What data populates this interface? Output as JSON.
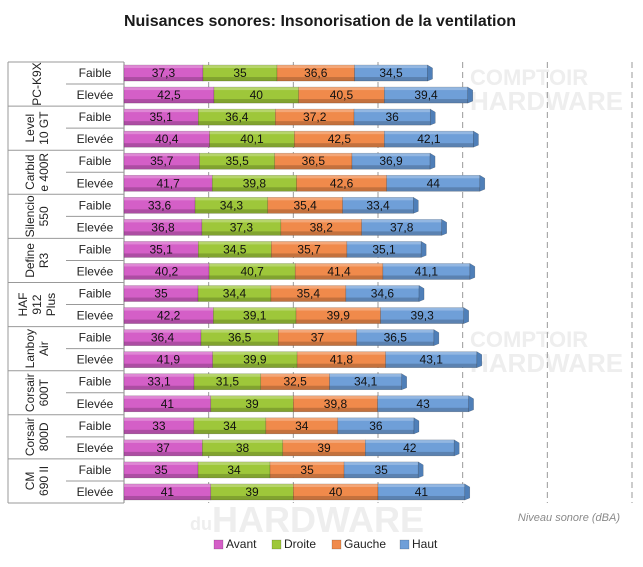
{
  "chart_data": {
    "type": "bar",
    "orientation": "horizontal",
    "stacked": true,
    "title": "Nuisances sonores: Insonorisation de la ventilation",
    "xlabel": "Niveau sonore (dBA)",
    "levels": [
      "Faible",
      "Elevée"
    ],
    "series_names": [
      "Avant",
      "Droite",
      "Gauche",
      "Haut"
    ],
    "colors": [
      "#d45fc7",
      "#9ec73a",
      "#f08a4b",
      "#6f9fd8"
    ],
    "groups": [
      {
        "name": [
          "PC-K9X"
        ],
        "rows": [
          [
            37.3,
            35,
            36.6,
            34.5
          ],
          [
            42.5,
            40,
            40.5,
            39.4
          ]
        ],
        "labels": [
          [
            "37,3",
            "35",
            "36,6",
            "34,5"
          ],
          [
            "42,5",
            "40",
            "40,5",
            "39,4"
          ]
        ]
      },
      {
        "name": [
          "Level",
          "10 GT"
        ],
        "rows": [
          [
            35.1,
            36.4,
            37.2,
            36
          ],
          [
            40.4,
            40.1,
            42.5,
            42.1
          ]
        ],
        "labels": [
          [
            "35,1",
            "36,4",
            "37,2",
            "36"
          ],
          [
            "40,4",
            "40,1",
            "42,5",
            "42,1"
          ]
        ]
      },
      {
        "name": [
          "Carbid",
          "e 400R"
        ],
        "rows": [
          [
            35.7,
            35.5,
            36.5,
            36.9
          ],
          [
            41.7,
            39.8,
            42.6,
            44
          ]
        ],
        "labels": [
          [
            "35,7",
            "35,5",
            "36,5",
            "36,9"
          ],
          [
            "41,7",
            "39,8",
            "42,6",
            "44"
          ]
        ]
      },
      {
        "name": [
          "Silencio",
          "550"
        ],
        "rows": [
          [
            33.6,
            34.3,
            35.4,
            33.4
          ],
          [
            36.8,
            37.3,
            38.2,
            37.8
          ]
        ],
        "labels": [
          [
            "33,6",
            "34,3",
            "35,4",
            "33,4"
          ],
          [
            "36,8",
            "37,3",
            "38,2",
            "37,8"
          ]
        ]
      },
      {
        "name": [
          "Define",
          "R3"
        ],
        "rows": [
          [
            35.1,
            34.5,
            35.7,
            35.1
          ],
          [
            40.2,
            40.7,
            41.4,
            41.1
          ]
        ],
        "labels": [
          [
            "35,1",
            "34,5",
            "35,7",
            "35,1"
          ],
          [
            "40,2",
            "40,7",
            "41,4",
            "41,1"
          ]
        ]
      },
      {
        "name": [
          "HAF",
          "912",
          "Plus"
        ],
        "rows": [
          [
            35,
            34.4,
            35.4,
            34.6
          ],
          [
            42.2,
            39.1,
            39.9,
            39.3
          ]
        ],
        "labels": [
          [
            "35",
            "34,4",
            "35,4",
            "34,6"
          ],
          [
            "42,2",
            "39,1",
            "39,9",
            "39,3"
          ]
        ]
      },
      {
        "name": [
          "Lanboy",
          "Air"
        ],
        "rows": [
          [
            36.4,
            36.5,
            37,
            36.5
          ],
          [
            41.9,
            39.9,
            41.8,
            43.1
          ]
        ],
        "labels": [
          [
            "36,4",
            "36,5",
            "37",
            "36,5"
          ],
          [
            "41,9",
            "39,9",
            "41,8",
            "43,1"
          ]
        ]
      },
      {
        "name": [
          "Corsair",
          "600T"
        ],
        "rows": [
          [
            33.1,
            31.5,
            32.5,
            34.1
          ],
          [
            41,
            39,
            39.8,
            43
          ]
        ],
        "labels": [
          [
            "33,1",
            "31,5",
            "32,5",
            "34,1"
          ],
          [
            "41",
            "39",
            "39,8",
            "43"
          ]
        ]
      },
      {
        "name": [
          "Corsair",
          "800D"
        ],
        "rows": [
          [
            33,
            34,
            34,
            36
          ],
          [
            37,
            38,
            39,
            42
          ]
        ],
        "labels": [
          [
            "33",
            "34",
            "34",
            "36"
          ],
          [
            "37",
            "38",
            "39",
            "42"
          ]
        ]
      },
      {
        "name": [
          "CM",
          "690 II"
        ],
        "rows": [
          [
            35,
            34,
            35,
            35
          ],
          [
            41,
            39,
            40,
            41
          ]
        ],
        "labels": [
          [
            "35",
            "34",
            "35",
            "35"
          ],
          [
            "41",
            "39",
            "40",
            "41"
          ]
        ]
      }
    ],
    "xlim": [
      0,
      240
    ],
    "grid": "vertical-dashed",
    "legend": "bottom"
  },
  "watermark": {
    "line1": "COMPTOIR",
    "line2": "HARDWARE",
    "line3": "du"
  }
}
